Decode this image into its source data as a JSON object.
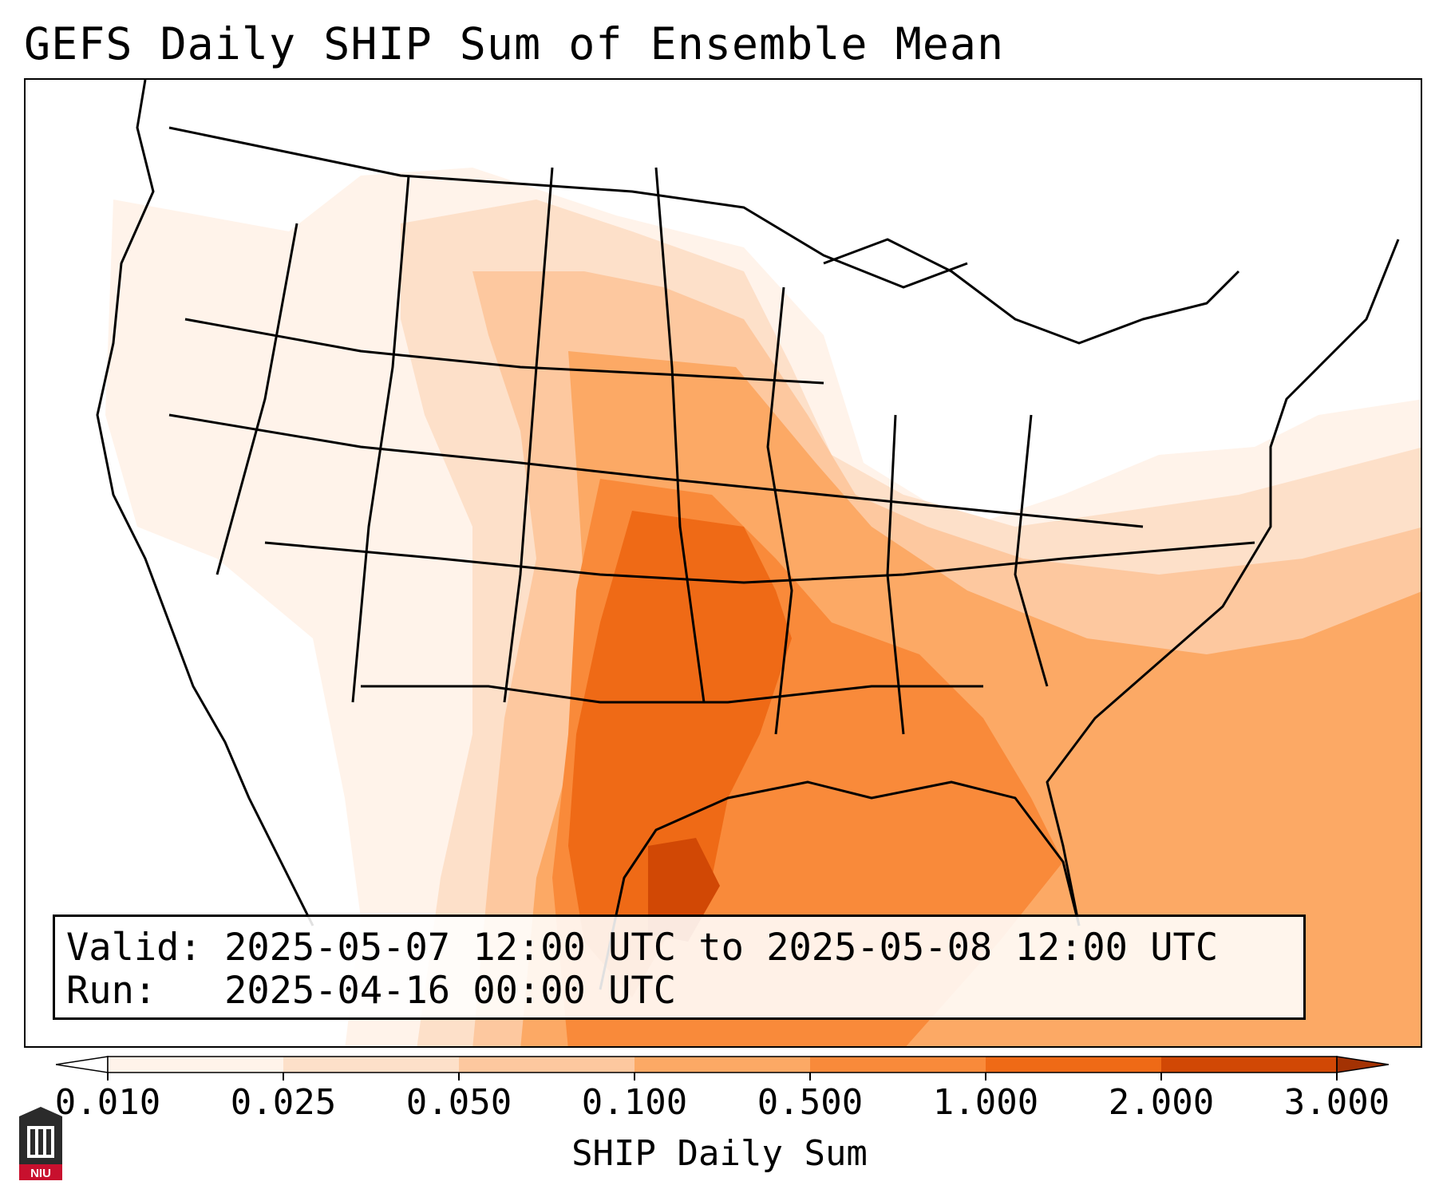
{
  "title": "GEFS Daily SHIP Sum of Ensemble Mean",
  "valid_label": "Valid:",
  "valid_value": "2025-05-07 12:00 UTC to 2025-05-08 12:00 UTC",
  "run_label": "Run:",
  "run_value": "2025-04-16 00:00 UTC",
  "colorbar": {
    "label": "SHIP Daily Sum",
    "ticks": [
      "0.010",
      "0.025",
      "0.050",
      "0.100",
      "0.500",
      "1.000",
      "2.000",
      "3.000"
    ],
    "colors": [
      "#fff3ea",
      "#fde0c9",
      "#fdc89f",
      "#fca965",
      "#f98a3a",
      "#ef6a16",
      "#d14805",
      "#a33203"
    ]
  },
  "logo": {
    "text": "NIU",
    "color": "#c8102e"
  }
}
